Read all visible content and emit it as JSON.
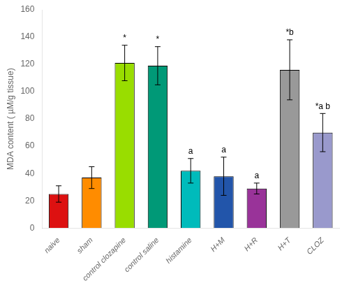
{
  "chart_data": {
    "type": "bar",
    "categories": [
      "naive",
      "sham",
      "control clozapine",
      "control saline",
      "histamine",
      "H+M",
      "H+R",
      "H+T",
      "CLOZ"
    ],
    "values": [
      25,
      37,
      121,
      119,
      42,
      38,
      29,
      116,
      70
    ],
    "errors": [
      6,
      8,
      13,
      14,
      9,
      14,
      4,
      22,
      14
    ],
    "colors": [
      "#dd1111",
      "#ff8c00",
      "#99dd00",
      "#009977",
      "#00bbbb",
      "#2255aa",
      "#993399",
      "#999999",
      "#9999cc"
    ],
    "annotations": [
      null,
      null,
      "*",
      "*",
      "a",
      "a",
      "a",
      "*b",
      "*a b"
    ],
    "ylabel": "MDA content ( µM/g tissue)",
    "ylim": [
      0,
      160
    ],
    "yticks": [
      0,
      20,
      40,
      60,
      80,
      100,
      120,
      140,
      160
    ],
    "grid": false
  }
}
